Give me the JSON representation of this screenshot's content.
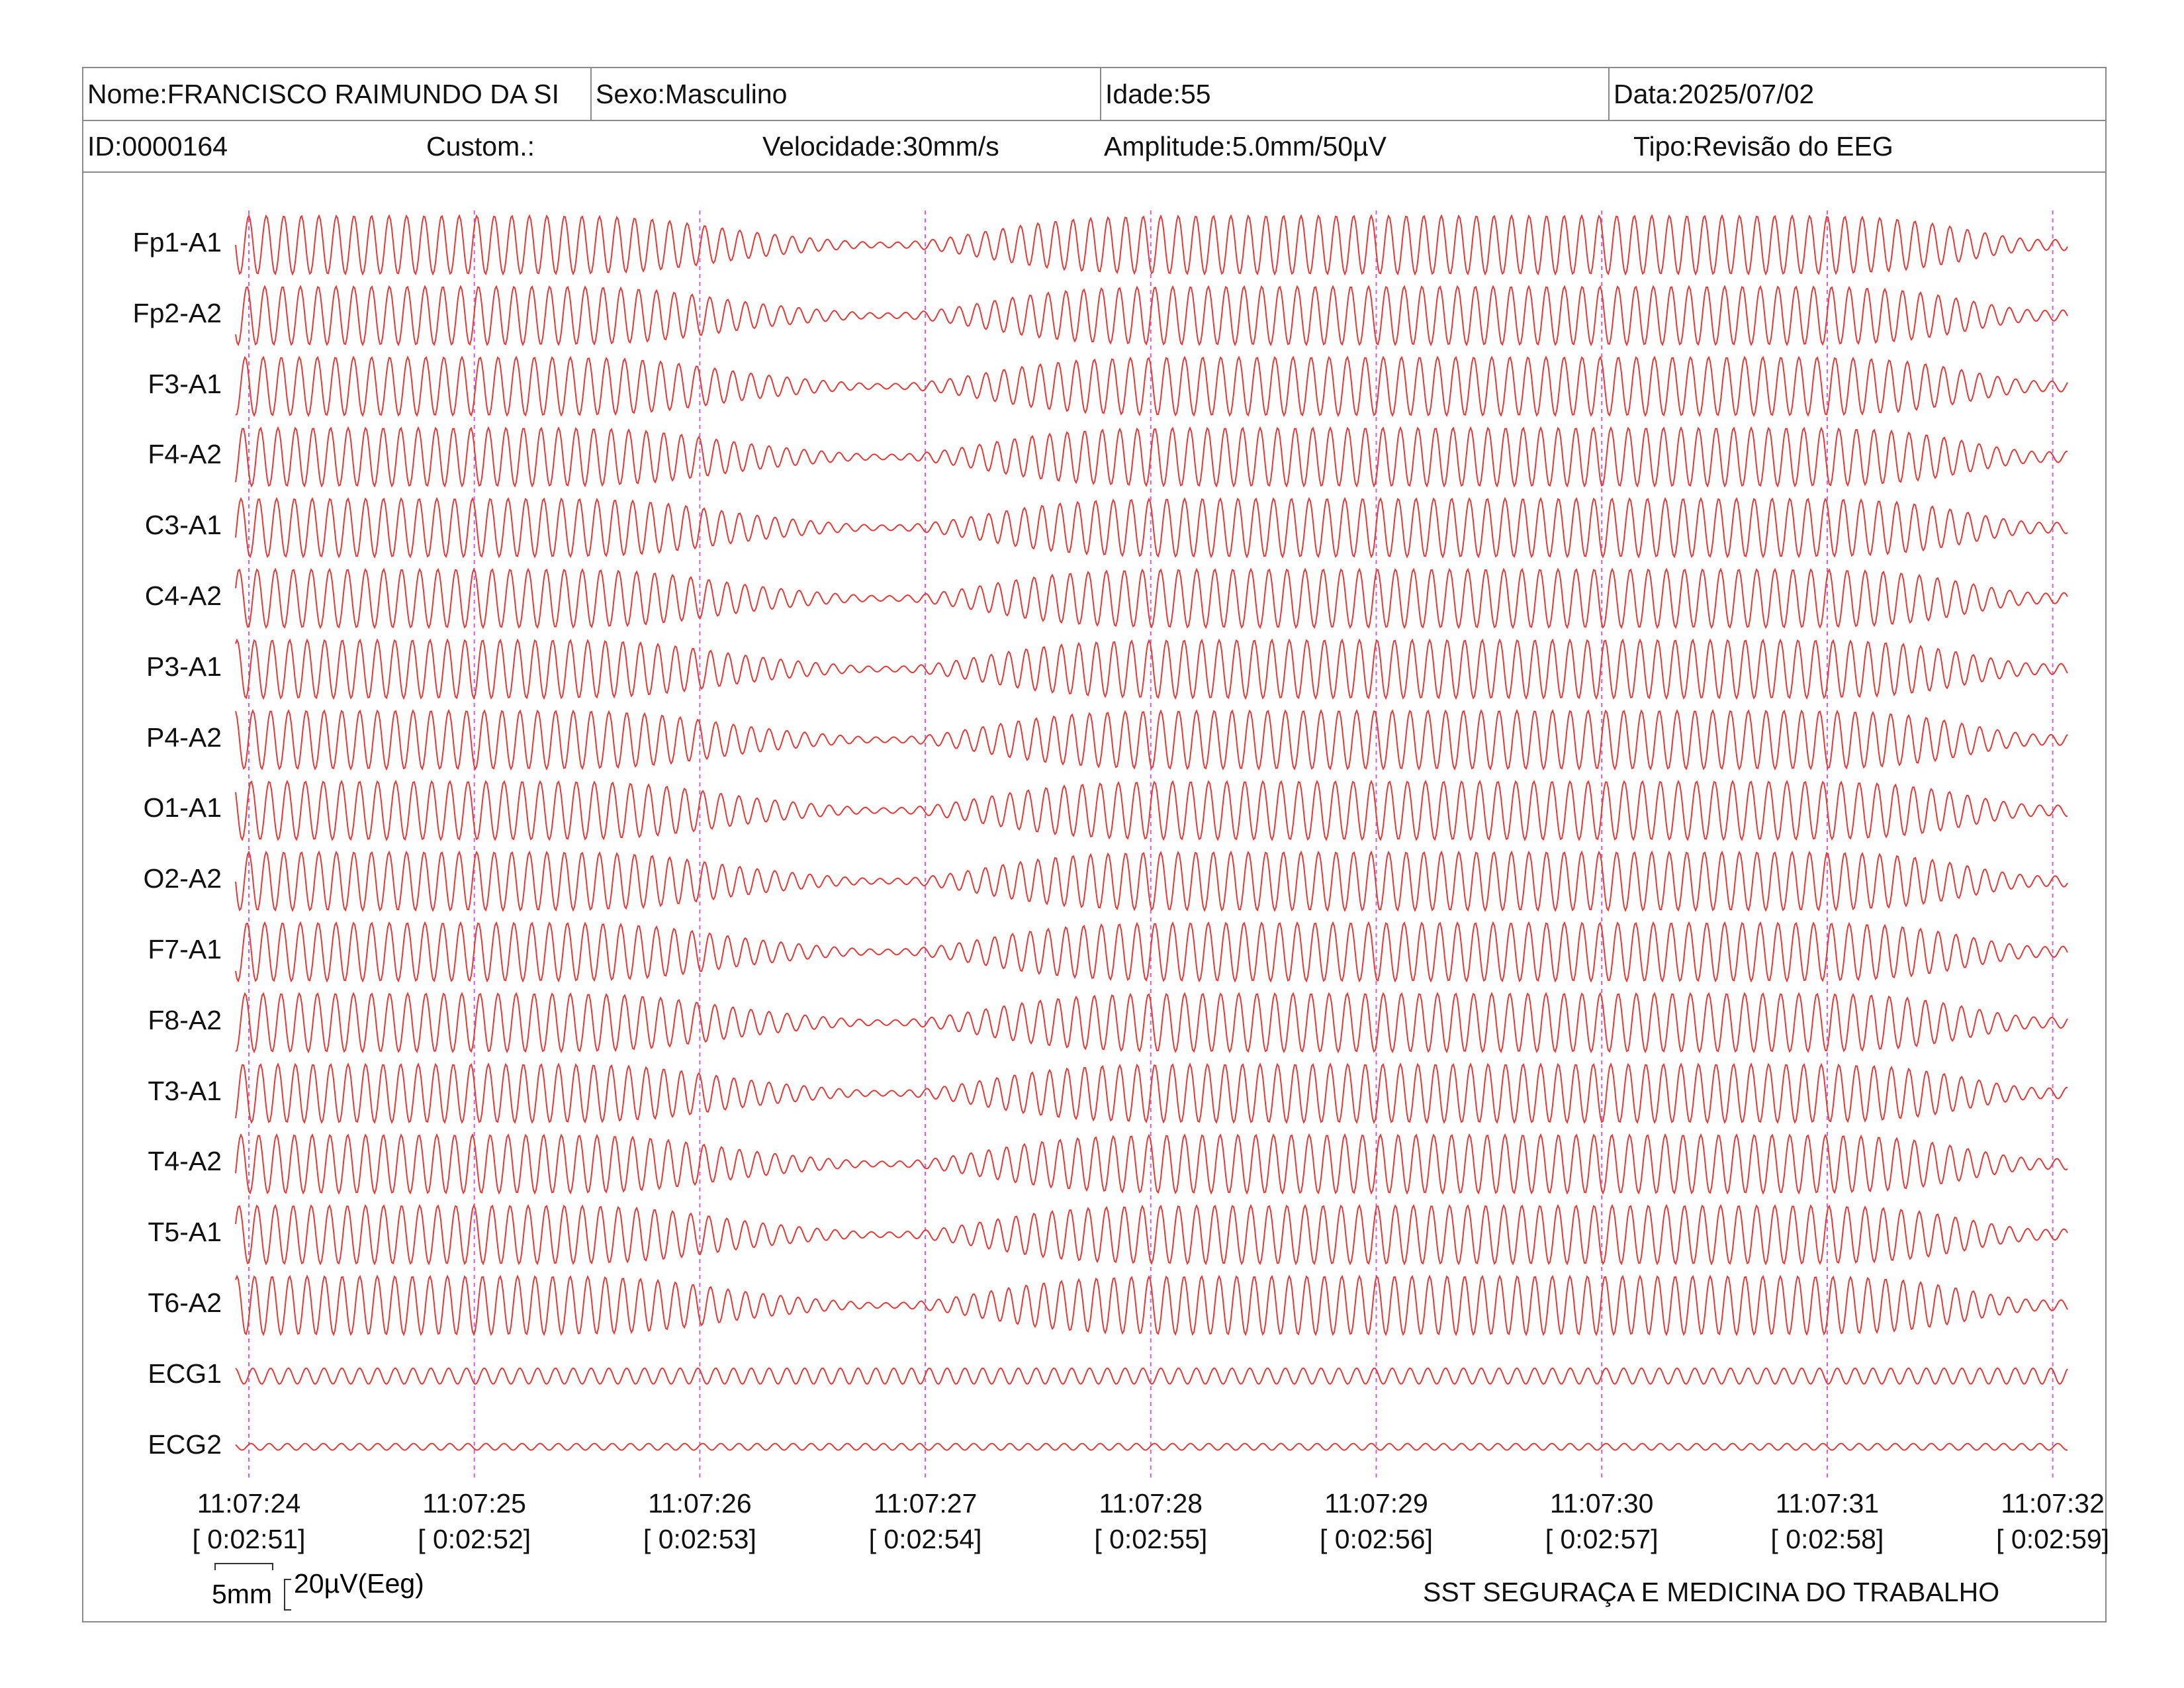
{
  "header": {
    "name": "Nome:FRANCISCO RAIMUNDO DA SI",
    "sex": "Sexo:Masculino",
    "age": "Idade:55",
    "date": "Data:2025/07/02",
    "id": "ID:0000164",
    "custom": "Custom.:",
    "speed": "Velocidade:30mm/s",
    "amplitude": "Amplitude:5.0mm/50µV",
    "type": "Tipo:Revisão do EEG"
  },
  "channels": [
    "Fp1-A1",
    "Fp2-A2",
    "F3-A1",
    "F4-A2",
    "C3-A1",
    "C4-A2",
    "P3-A1",
    "P4-A2",
    "O1-A1",
    "O2-A2",
    "F7-A1",
    "F8-A2",
    "T3-A1",
    "T4-A2",
    "T5-A1",
    "T6-A2",
    "ECG1",
    "ECG2"
  ],
  "time_marks": [
    {
      "clock": "11:07:24",
      "elapsed": "[ 0:02:51]"
    },
    {
      "clock": "11:07:25",
      "elapsed": "[ 0:02:52]"
    },
    {
      "clock": "11:07:26",
      "elapsed": "[ 0:02:53]"
    },
    {
      "clock": "11:07:27",
      "elapsed": "[ 0:02:54]"
    },
    {
      "clock": "11:07:28",
      "elapsed": "[ 0:02:55]"
    },
    {
      "clock": "11:07:29",
      "elapsed": "[ 0:02:56]"
    },
    {
      "clock": "11:07:30",
      "elapsed": "[ 0:02:57]"
    },
    {
      "clock": "11:07:31",
      "elapsed": "[ 0:02:58]"
    },
    {
      "clock": "11:07:32",
      "elapsed": "[ 0:02:59]"
    }
  ],
  "scale": {
    "time": "5mm",
    "amplitude": "20µV(Eeg)"
  },
  "footer": {
    "organization": "SST SEGURAÇA E MEDICINA DO TRABALHO"
  },
  "colors": {
    "trace": "#e53935",
    "time_grid": "#d65be0",
    "border": "#8a8a8a"
  }
}
